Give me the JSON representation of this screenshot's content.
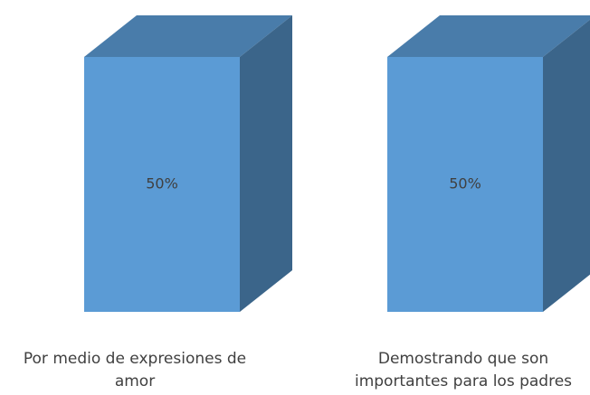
{
  "chart_data": {
    "type": "bar3d",
    "categories": [
      "Por medio de expresiones de amor",
      "Demostrando que son importantes para los padres"
    ],
    "values": [
      50,
      50
    ],
    "value_labels": [
      "50%",
      "50%"
    ],
    "color": "#5b9bd5"
  }
}
